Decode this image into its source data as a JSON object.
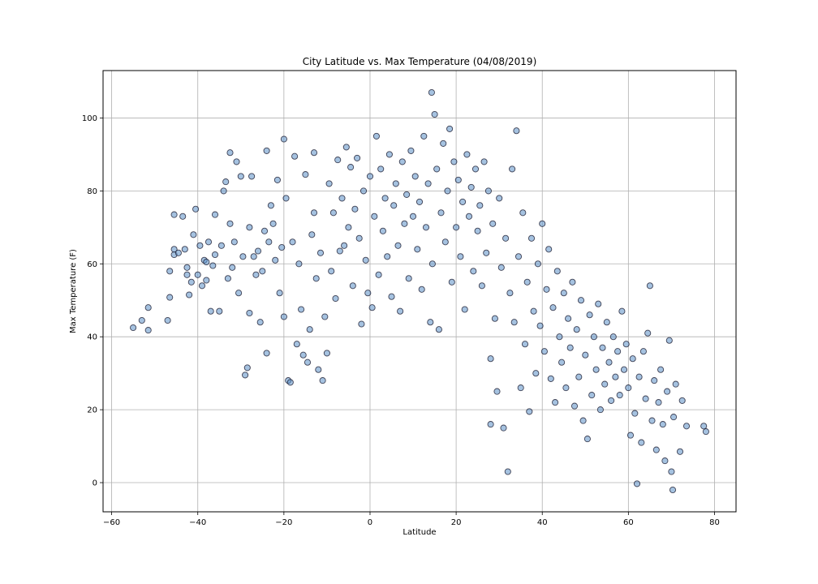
{
  "chart_data": {
    "type": "scatter",
    "title": "City Latitude vs. Max Temperature (04/08/2019)",
    "xlabel": "Latitude",
    "ylabel": "Max Temperature (F)",
    "xlim": [
      -62,
      85
    ],
    "ylim": [
      -8,
      113
    ],
    "xticks": [
      -60,
      -40,
      -20,
      0,
      20,
      40,
      60,
      80
    ],
    "yticks": [
      0,
      20,
      40,
      60,
      80,
      100
    ],
    "xtick_labels": [
      "−60",
      "−40",
      "−20",
      "0",
      "20",
      "40",
      "60",
      "80"
    ],
    "ytick_labels": [
      "0",
      "20",
      "40",
      "60",
      "80",
      "100"
    ],
    "grid": true,
    "marker_fill": "#5b8fc7",
    "marker_edge": "#1a1a2e",
    "marker_alpha": 0.55,
    "points": [
      [
        -55,
        42.5
      ],
      [
        -53,
        44.5
      ],
      [
        -51.5,
        41.8
      ],
      [
        -51.5,
        48
      ],
      [
        -47,
        44.5
      ],
      [
        -46.5,
        50.8
      ],
      [
        -46.5,
        58
      ],
      [
        -45.5,
        62.5
      ],
      [
        -45.5,
        64
      ],
      [
        -45.5,
        73.5
      ],
      [
        -44.5,
        63
      ],
      [
        -43.5,
        73
      ],
      [
        -43,
        64
      ],
      [
        -42.5,
        57
      ],
      [
        -42.5,
        59
      ],
      [
        -42,
        51.5
      ],
      [
        -41.5,
        55
      ],
      [
        -41,
        68
      ],
      [
        -40.5,
        75
      ],
      [
        -40,
        57
      ],
      [
        -39.5,
        65
      ],
      [
        -39,
        54
      ],
      [
        -38.5,
        61
      ],
      [
        -38,
        55.5
      ],
      [
        -38,
        60.5
      ],
      [
        -37.5,
        66
      ],
      [
        -37,
        47
      ],
      [
        -36.5,
        59.5
      ],
      [
        -36,
        62.5
      ],
      [
        -36,
        73.5
      ],
      [
        -35,
        47
      ],
      [
        -34.5,
        65
      ],
      [
        -34,
        80
      ],
      [
        -33.5,
        82.5
      ],
      [
        -33,
        56
      ],
      [
        -32.5,
        71
      ],
      [
        -32.5,
        90.5
      ],
      [
        -32,
        59
      ],
      [
        -31.5,
        66
      ],
      [
        -31,
        88
      ],
      [
        -30.5,
        52
      ],
      [
        -30,
        84
      ],
      [
        -29.5,
        62
      ],
      [
        -29,
        29.5
      ],
      [
        -28.5,
        31.5
      ],
      [
        -28,
        70
      ],
      [
        -28,
        46.5
      ],
      [
        -27.5,
        84
      ],
      [
        -27,
        62
      ],
      [
        -26.5,
        57
      ],
      [
        -26,
        63.5
      ],
      [
        -25.5,
        44
      ],
      [
        -25,
        58
      ],
      [
        -24.5,
        69
      ],
      [
        -24,
        91
      ],
      [
        -24,
        35.5
      ],
      [
        -23.5,
        66
      ],
      [
        -23,
        76
      ],
      [
        -22.5,
        71
      ],
      [
        -22,
        61
      ],
      [
        -21.5,
        83
      ],
      [
        -21,
        52
      ],
      [
        -20.5,
        64.5
      ],
      [
        -20,
        94.2
      ],
      [
        -20,
        45.5
      ],
      [
        -19.5,
        78
      ],
      [
        -19,
        28
      ],
      [
        -18.5,
        27.5
      ],
      [
        -18,
        66
      ],
      [
        -17.5,
        89.5
      ],
      [
        -17,
        38
      ],
      [
        -16.5,
        60
      ],
      [
        -16,
        47.5
      ],
      [
        -15.5,
        35
      ],
      [
        -15,
        84.5
      ],
      [
        -14.5,
        33
      ],
      [
        -14,
        42
      ],
      [
        -13.5,
        68
      ],
      [
        -13,
        74
      ],
      [
        -13,
        90.5
      ],
      [
        -12.5,
        56
      ],
      [
        -12,
        31
      ],
      [
        -11.5,
        63
      ],
      [
        -11,
        28
      ],
      [
        -10.5,
        45.5
      ],
      [
        -10,
        35.5
      ],
      [
        -9.5,
        82
      ],
      [
        -9,
        58
      ],
      [
        -8.5,
        74
      ],
      [
        -8,
        50.5
      ],
      [
        -7.5,
        88.5
      ],
      [
        -7,
        63.5
      ],
      [
        -6.5,
        78
      ],
      [
        -6,
        65
      ],
      [
        -5.5,
        92
      ],
      [
        -5,
        70
      ],
      [
        -4.5,
        86.5
      ],
      [
        -4,
        54
      ],
      [
        -3.5,
        75
      ],
      [
        -3,
        89
      ],
      [
        -2.5,
        67
      ],
      [
        -2,
        43.5
      ],
      [
        -1.5,
        80
      ],
      [
        -1,
        61
      ],
      [
        -0.5,
        52
      ],
      [
        0,
        84
      ],
      [
        0.5,
        48
      ],
      [
        1,
        73
      ],
      [
        1.5,
        95
      ],
      [
        2,
        57
      ],
      [
        2.5,
        86
      ],
      [
        3,
        69
      ],
      [
        3.5,
        78
      ],
      [
        4,
        62
      ],
      [
        4.5,
        90
      ],
      [
        5,
        51
      ],
      [
        5.5,
        76
      ],
      [
        6,
        82
      ],
      [
        6.5,
        65
      ],
      [
        7,
        47
      ],
      [
        7.5,
        88
      ],
      [
        8,
        71
      ],
      [
        8.5,
        79
      ],
      [
        9,
        56
      ],
      [
        9.5,
        91
      ],
      [
        10,
        73
      ],
      [
        10.5,
        84
      ],
      [
        11,
        64
      ],
      [
        11.5,
        77
      ],
      [
        12,
        53
      ],
      [
        12.5,
        95
      ],
      [
        13,
        70
      ],
      [
        13.5,
        82
      ],
      [
        14,
        44
      ],
      [
        14.3,
        107
      ],
      [
        14.5,
        60
      ],
      [
        15,
        101
      ],
      [
        15.5,
        86
      ],
      [
        16,
        42
      ],
      [
        16.5,
        74
      ],
      [
        17,
        93
      ],
      [
        17.5,
        66
      ],
      [
        18,
        80
      ],
      [
        18.5,
        97
      ],
      [
        19,
        55
      ],
      [
        19.5,
        88
      ],
      [
        20,
        70
      ],
      [
        20.5,
        83
      ],
      [
        21,
        62
      ],
      [
        21.5,
        77
      ],
      [
        22,
        47.5
      ],
      [
        22.5,
        90
      ],
      [
        23,
        73
      ],
      [
        23.5,
        81
      ],
      [
        24,
        58
      ],
      [
        24.5,
        86
      ],
      [
        25,
        69
      ],
      [
        25.5,
        76
      ],
      [
        26,
        54
      ],
      [
        26.5,
        88
      ],
      [
        27,
        63
      ],
      [
        27.5,
        80
      ],
      [
        28,
        34
      ],
      [
        28,
        16
      ],
      [
        28.5,
        71
      ],
      [
        29,
        45
      ],
      [
        29.5,
        25
      ],
      [
        30,
        78
      ],
      [
        30.5,
        59
      ],
      [
        31,
        15
      ],
      [
        31.5,
        67
      ],
      [
        32,
        3
      ],
      [
        32.5,
        52
      ],
      [
        33,
        86
      ],
      [
        33.5,
        44
      ],
      [
        34,
        96.5
      ],
      [
        34.5,
        62
      ],
      [
        35,
        26
      ],
      [
        35.5,
        74
      ],
      [
        36,
        38
      ],
      [
        36.5,
        55
      ],
      [
        37,
        19.5
      ],
      [
        37.5,
        67
      ],
      [
        38,
        47
      ],
      [
        38.5,
        30
      ],
      [
        39,
        60
      ],
      [
        39.5,
        43
      ],
      [
        40,
        71
      ],
      [
        40.5,
        36
      ],
      [
        41,
        53
      ],
      [
        41.5,
        64
      ],
      [
        42,
        28.5
      ],
      [
        42.5,
        48
      ],
      [
        43,
        22
      ],
      [
        43.5,
        58
      ],
      [
        44,
        40
      ],
      [
        44.5,
        33
      ],
      [
        45,
        52
      ],
      [
        45.5,
        26
      ],
      [
        46,
        45
      ],
      [
        46.5,
        37
      ],
      [
        47,
        55
      ],
      [
        47.5,
        21
      ],
      [
        48,
        42
      ],
      [
        48.5,
        29
      ],
      [
        49,
        50
      ],
      [
        49.5,
        17
      ],
      [
        50,
        35
      ],
      [
        50.5,
        12
      ],
      [
        51,
        46
      ],
      [
        51.5,
        24
      ],
      [
        52,
        40
      ],
      [
        52.5,
        31
      ],
      [
        53,
        49
      ],
      [
        53.5,
        20
      ],
      [
        54,
        37
      ],
      [
        54.5,
        27
      ],
      [
        55,
        44
      ],
      [
        55.5,
        33
      ],
      [
        56,
        22.5
      ],
      [
        56.5,
        40
      ],
      [
        57,
        29
      ],
      [
        57.5,
        36
      ],
      [
        58,
        24
      ],
      [
        58.5,
        47
      ],
      [
        59,
        31
      ],
      [
        59.5,
        38
      ],
      [
        60,
        26
      ],
      [
        60.5,
        13
      ],
      [
        61,
        34
      ],
      [
        61.5,
        19
      ],
      [
        62,
        -0.3
      ],
      [
        62.5,
        29
      ],
      [
        63,
        11
      ],
      [
        63.5,
        36
      ],
      [
        64,
        23
      ],
      [
        64.5,
        41
      ],
      [
        65,
        54
      ],
      [
        65.5,
        17
      ],
      [
        66,
        28
      ],
      [
        66.5,
        9
      ],
      [
        67,
        22
      ],
      [
        67.5,
        31
      ],
      [
        68,
        16
      ],
      [
        68.5,
        6
      ],
      [
        69,
        25
      ],
      [
        69.5,
        39
      ],
      [
        70,
        3
      ],
      [
        70.3,
        -2
      ],
      [
        70.5,
        18
      ],
      [
        71,
        27
      ],
      [
        72,
        8.5
      ],
      [
        72.5,
        22.5
      ],
      [
        73.5,
        15.5
      ],
      [
        77.5,
        15.5
      ],
      [
        78,
        14
      ]
    ]
  }
}
